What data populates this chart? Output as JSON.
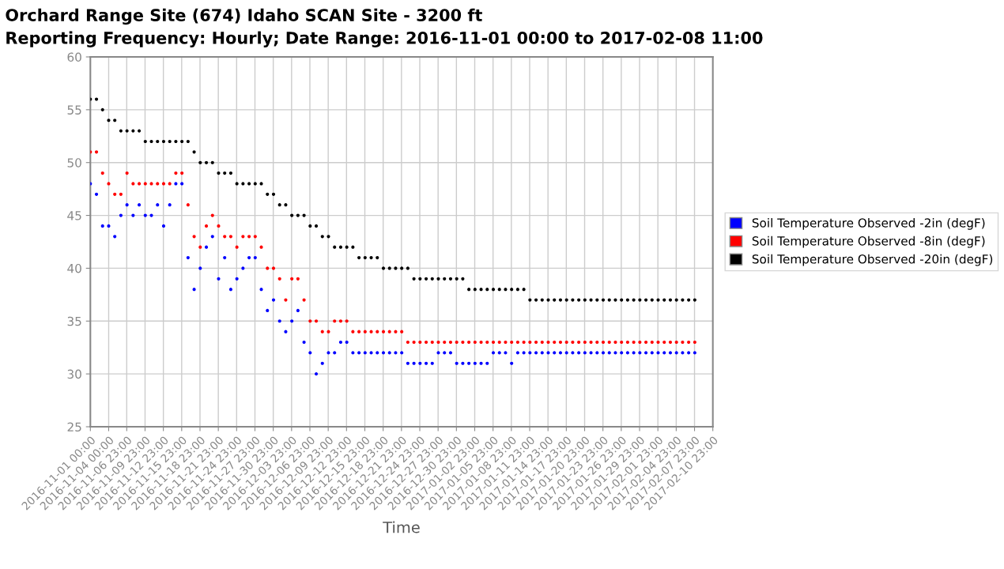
{
  "chart_data": {
    "type": "scatter",
    "title": "Orchard Range Site (674) Idaho SCAN Site - 3200 ft",
    "subtitle": "Reporting Frequency: Hourly; Date Range: 2016-11-01 00:00 to 2017-02-08 11:00",
    "xlabel": "Time",
    "x": [
      "2016-11-01",
      "2016-11-02",
      "2016-11-03",
      "2016-11-04",
      "2016-11-05",
      "2016-11-06",
      "2016-11-07",
      "2016-11-08",
      "2016-11-09",
      "2016-11-10",
      "2016-11-11",
      "2016-11-12",
      "2016-11-13",
      "2016-11-14",
      "2016-11-15",
      "2016-11-16",
      "2016-11-17",
      "2016-11-18",
      "2016-11-19",
      "2016-11-20",
      "2016-11-21",
      "2016-11-22",
      "2016-11-23",
      "2016-11-24",
      "2016-11-25",
      "2016-11-26",
      "2016-11-27",
      "2016-11-28",
      "2016-11-29",
      "2016-11-30",
      "2016-12-01",
      "2016-12-02",
      "2016-12-03",
      "2016-12-04",
      "2016-12-05",
      "2016-12-06",
      "2016-12-07",
      "2016-12-08",
      "2016-12-09",
      "2016-12-10",
      "2016-12-11",
      "2016-12-12",
      "2016-12-13",
      "2016-12-14",
      "2016-12-15",
      "2016-12-16",
      "2016-12-17",
      "2016-12-18",
      "2016-12-19",
      "2016-12-20",
      "2016-12-21",
      "2016-12-22",
      "2016-12-23",
      "2016-12-24",
      "2016-12-25",
      "2016-12-26",
      "2016-12-27",
      "2016-12-28",
      "2016-12-29",
      "2016-12-30",
      "2016-12-31",
      "2017-01-01",
      "2017-01-02",
      "2017-01-03",
      "2017-01-04",
      "2017-01-05",
      "2017-01-06",
      "2017-01-07",
      "2017-01-08",
      "2017-01-09",
      "2017-01-10",
      "2017-01-11",
      "2017-01-12",
      "2017-01-13",
      "2017-01-14",
      "2017-01-15",
      "2017-01-16",
      "2017-01-17",
      "2017-01-18",
      "2017-01-19",
      "2017-01-20",
      "2017-01-21",
      "2017-01-22",
      "2017-01-23",
      "2017-01-24",
      "2017-01-25",
      "2017-01-26",
      "2017-01-27",
      "2017-01-28",
      "2017-01-29",
      "2017-01-30",
      "2017-01-31",
      "2017-02-01",
      "2017-02-02",
      "2017-02-03",
      "2017-02-04",
      "2017-02-05",
      "2017-02-06",
      "2017-02-07",
      "2017-02-08"
    ],
    "series": [
      {
        "name": "Soil Temperature Observed -2in (degF)",
        "color": "#0000ff",
        "values": [
          48,
          47,
          44,
          44,
          43,
          45,
          46,
          45,
          46,
          45,
          45,
          46,
          44,
          46,
          48,
          48,
          41,
          38,
          40,
          42,
          43,
          39,
          41,
          38,
          39,
          40,
          41,
          41,
          38,
          36,
          37,
          35,
          34,
          35,
          36,
          33,
          32,
          30,
          31,
          32,
          32,
          33,
          33,
          32,
          32,
          32,
          32,
          32,
          32,
          32,
          32,
          32,
          31,
          31,
          31,
          31,
          31,
          32,
          32,
          32,
          31,
          31,
          31,
          31,
          31,
          31,
          32,
          32,
          32,
          31,
          32,
          32,
          32,
          32,
          32,
          32,
          32,
          32,
          32,
          32,
          32,
          32,
          32,
          32,
          32,
          32,
          32,
          32,
          32,
          32,
          32,
          32,
          32,
          32,
          32,
          32,
          32,
          32,
          32,
          32
        ]
      },
      {
        "name": "Soil Temperature Observed -8in (degF)",
        "color": "#ff0000",
        "values": [
          51,
          51,
          49,
          48,
          47,
          47,
          49,
          48,
          48,
          48,
          48,
          48,
          48,
          48,
          49,
          49,
          46,
          43,
          42,
          44,
          45,
          44,
          43,
          43,
          42,
          43,
          43,
          43,
          42,
          40,
          40,
          39,
          37,
          39,
          39,
          37,
          35,
          35,
          34,
          34,
          35,
          35,
          35,
          34,
          34,
          34,
          34,
          34,
          34,
          34,
          34,
          34,
          33,
          33,
          33,
          33,
          33,
          33,
          33,
          33,
          33,
          33,
          33,
          33,
          33,
          33,
          33,
          33,
          33,
          33,
          33,
          33,
          33,
          33,
          33,
          33,
          33,
          33,
          33,
          33,
          33,
          33,
          33,
          33,
          33,
          33,
          33,
          33,
          33,
          33,
          33,
          33,
          33,
          33,
          33,
          33,
          33,
          33,
          33,
          33
        ]
      },
      {
        "name": "Soil Temperature Observed -20in (degF)",
        "color": "#000000",
        "values": [
          56,
          56,
          55,
          54,
          54,
          53,
          53,
          53,
          53,
          52,
          52,
          52,
          52,
          52,
          52,
          52,
          52,
          51,
          50,
          50,
          50,
          49,
          49,
          49,
          48,
          48,
          48,
          48,
          48,
          47,
          47,
          46,
          46,
          45,
          45,
          45,
          44,
          44,
          43,
          43,
          42,
          42,
          42,
          42,
          41,
          41,
          41,
          41,
          40,
          40,
          40,
          40,
          40,
          39,
          39,
          39,
          39,
          39,
          39,
          39,
          39,
          39,
          38,
          38,
          38,
          38,
          38,
          38,
          38,
          38,
          38,
          38,
          37,
          37,
          37,
          37,
          37,
          37,
          37,
          37,
          37,
          37,
          37,
          37,
          37,
          37,
          37,
          37,
          37,
          37,
          37,
          37,
          37,
          37,
          37,
          37,
          37,
          37,
          37,
          37
        ]
      }
    ],
    "xlim": [
      "2016-11-01T00:00",
      "2017-02-10T23:00"
    ],
    "xticks": [
      {
        "value": "2016-11-01T00:00",
        "label": "2016-11-01 00:00"
      },
      {
        "value": "2016-11-04T00:00",
        "label": "2016-11-04 00:00"
      },
      {
        "value": "2016-11-06T23:00",
        "label": "2016-11-06 23:00"
      },
      {
        "value": "2016-11-09T23:00",
        "label": "2016-11-09 23:00"
      },
      {
        "value": "2016-11-12T23:00",
        "label": "2016-11-12 23:00"
      },
      {
        "value": "2016-11-15T23:00",
        "label": "2016-11-15 23:00"
      },
      {
        "value": "2016-11-18T23:00",
        "label": "2016-11-18 23:00"
      },
      {
        "value": "2016-11-21T23:00",
        "label": "2016-11-21 23:00"
      },
      {
        "value": "2016-11-24T23:00",
        "label": "2016-11-24 23:00"
      },
      {
        "value": "2016-11-27T23:00",
        "label": "2016-11-27 23:00"
      },
      {
        "value": "2016-11-30T23:00",
        "label": "2016-11-30 23:00"
      },
      {
        "value": "2016-12-03T23:00",
        "label": "2016-12-03 23:00"
      },
      {
        "value": "2016-12-06T23:00",
        "label": "2016-12-06 23:00"
      },
      {
        "value": "2016-12-09T23:00",
        "label": "2016-12-09 23:00"
      },
      {
        "value": "2016-12-12T23:00",
        "label": "2016-12-12 23:00"
      },
      {
        "value": "2016-12-15T23:00",
        "label": "2016-12-15 23:00"
      },
      {
        "value": "2016-12-18T23:00",
        "label": "2016-12-18 23:00"
      },
      {
        "value": "2016-12-21T23:00",
        "label": "2016-12-21 23:00"
      },
      {
        "value": "2016-12-24T23:00",
        "label": "2016-12-24 23:00"
      },
      {
        "value": "2016-12-27T23:00",
        "label": "2016-12-27 23:00"
      },
      {
        "value": "2016-12-30T23:00",
        "label": "2016-12-30 23:00"
      },
      {
        "value": "2017-01-02T23:00",
        "label": "2017-01-02 23:00"
      },
      {
        "value": "2017-01-05T23:00",
        "label": "2017-01-05 23:00"
      },
      {
        "value": "2017-01-08T23:00",
        "label": "2017-01-08 23:00"
      },
      {
        "value": "2017-01-11T23:00",
        "label": "2017-01-11 23:00"
      },
      {
        "value": "2017-01-14T23:00",
        "label": "2017-01-14 23:00"
      },
      {
        "value": "2017-01-17T23:00",
        "label": "2017-01-17 23:00"
      },
      {
        "value": "2017-01-20T23:00",
        "label": "2017-01-20 23:00"
      },
      {
        "value": "2017-01-23T23:00",
        "label": "2017-01-23 23:00"
      },
      {
        "value": "2017-01-26T23:00",
        "label": "2017-01-26 23:00"
      },
      {
        "value": "2017-01-29T23:00",
        "label": "2017-01-29 23:00"
      },
      {
        "value": "2017-02-01T23:00",
        "label": "2017-02-01 23:00"
      },
      {
        "value": "2017-02-04T23:00",
        "label": "2017-02-04 23:00"
      },
      {
        "value": "2017-02-07T23:00",
        "label": "2017-02-07 23:00"
      },
      {
        "value": "2017-02-10T23:00",
        "label": "2017-02-10 23:00"
      }
    ],
    "ylim": [
      25,
      60
    ],
    "yticks": [
      25,
      30,
      35,
      40,
      45,
      50,
      55,
      60
    ],
    "grid": true,
    "legend": "right",
    "marker": "circle"
  }
}
